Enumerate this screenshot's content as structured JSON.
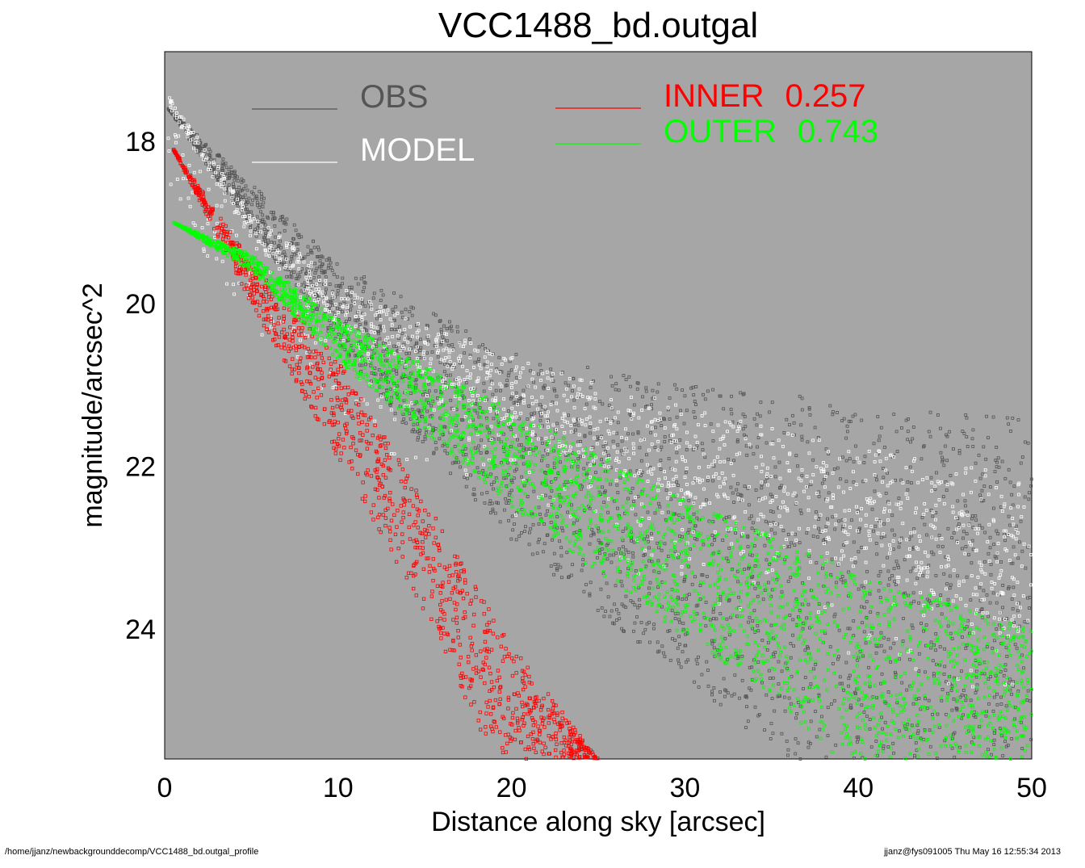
{
  "chart_data": {
    "type": "scatter",
    "title": "VCC1488_bd.outgal",
    "xlabel": "Distance along sky [arcsec]",
    "ylabel": "magnitude/arcsec^2",
    "xlim": [
      0,
      50
    ],
    "ylim": [
      25.6,
      16.9
    ],
    "y_inverted": true,
    "x_ticks": [
      "0",
      "10",
      "20",
      "30",
      "40",
      "50"
    ],
    "y_ticks": [
      "18",
      "20",
      "22",
      "24"
    ],
    "plot_background": "#a6a6a6",
    "legend_placement": "top",
    "series": [
      {
        "name": "OBS",
        "color": "#555555",
        "points": [
          [
            0.2,
            17.6
          ],
          [
            5,
            18.8
          ],
          [
            10,
            19.9
          ],
          [
            15,
            20.6
          ],
          [
            20,
            21.0
          ],
          [
            25,
            21.4
          ],
          [
            30,
            21.7
          ],
          [
            35,
            21.9
          ],
          [
            40,
            22.2
          ],
          [
            45,
            22.4
          ],
          [
            50,
            22.6
          ]
        ],
        "scatter_lower": [
          [
            0.2,
            17.6
          ],
          [
            5,
            19.1
          ],
          [
            10,
            20.5
          ],
          [
            15,
            21.8
          ],
          [
            20,
            22.9
          ],
          [
            25,
            23.8
          ],
          [
            30,
            24.6
          ],
          [
            34,
            25.3
          ],
          [
            36,
            25.6
          ]
        ],
        "scatter_upper": [
          [
            0.2,
            17.6
          ],
          [
            10,
            19.5
          ],
          [
            20,
            20.6
          ],
          [
            30,
            21.0
          ],
          [
            40,
            21.2
          ],
          [
            50,
            21.4
          ]
        ]
      },
      {
        "name": "MODEL",
        "color": "#ffffff",
        "points": [
          [
            0.2,
            17.6
          ],
          [
            5,
            19.2
          ],
          [
            10,
            20.25
          ],
          [
            15,
            20.95
          ],
          [
            20,
            21.5
          ],
          [
            25,
            22.0
          ],
          [
            30,
            22.45
          ],
          [
            35,
            22.9
          ],
          [
            40,
            23.3
          ],
          [
            45,
            23.7
          ],
          [
            50,
            24.0
          ]
        ]
      },
      {
        "name": "INNER",
        "label_value": "0.257",
        "color": "#ff0000",
        "points": [
          [
            0.5,
            18.1
          ],
          [
            3,
            19.0
          ],
          [
            5,
            19.8
          ],
          [
            8,
            20.6
          ],
          [
            10,
            21.3
          ],
          [
            13,
            22.4
          ],
          [
            15,
            23.1
          ],
          [
            18,
            24.1
          ],
          [
            20,
            24.7
          ],
          [
            23,
            25.6
          ]
        ],
        "scatter_lower": [
          [
            0.5,
            18.1
          ],
          [
            5,
            20.0
          ],
          [
            10,
            21.9
          ],
          [
            15,
            23.8
          ],
          [
            19,
            25.6
          ]
        ],
        "scatter_upper": [
          [
            0.5,
            18.1
          ],
          [
            5,
            19.5
          ],
          [
            10,
            20.7
          ],
          [
            15,
            22.4
          ],
          [
            20,
            24.2
          ],
          [
            25,
            25.6
          ]
        ]
      },
      {
        "name": "OUTER",
        "label_value": "0.743",
        "color": "#00ff00",
        "points": [
          [
            0.5,
            19.0
          ],
          [
            5,
            19.5
          ],
          [
            10,
            20.5
          ],
          [
            15,
            21.1
          ],
          [
            20,
            21.8
          ],
          [
            25,
            22.4
          ],
          [
            30,
            23.0
          ],
          [
            35,
            23.6
          ],
          [
            40,
            24.2
          ],
          [
            45,
            24.8
          ],
          [
            50,
            25.2
          ]
        ],
        "scatter_lower": [
          [
            0.5,
            19.0
          ],
          [
            5,
            19.6
          ],
          [
            10,
            20.7
          ],
          [
            15,
            21.6
          ],
          [
            20,
            22.5
          ],
          [
            25,
            23.3
          ],
          [
            30,
            24.1
          ],
          [
            35,
            24.8
          ],
          [
            38.8,
            25.6
          ]
        ],
        "scatter_upper": [
          [
            0.5,
            19.0
          ],
          [
            5,
            19.4
          ],
          [
            10,
            20.2
          ],
          [
            20,
            21.3
          ],
          [
            30,
            22.4
          ],
          [
            40,
            23.3
          ],
          [
            50,
            24.0
          ]
        ]
      }
    ]
  },
  "footer": {
    "path": "/home/jjanz/newbackgrounddecomp/VCC1488_bd.outgal_profile",
    "stamp": "jjanz@fys091005  Thu May 16 12:55:34 2013"
  }
}
